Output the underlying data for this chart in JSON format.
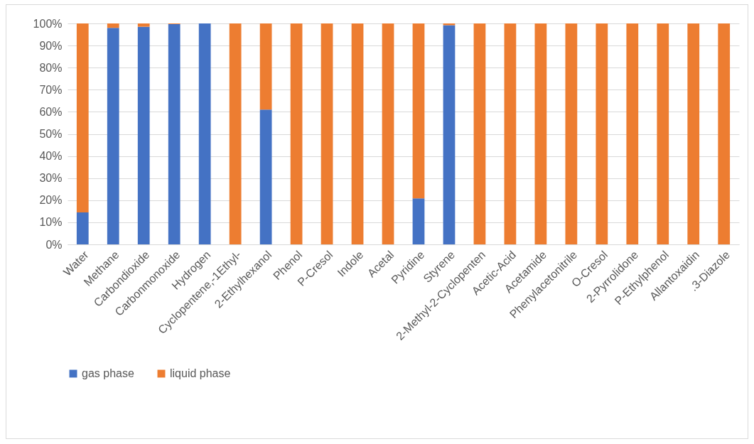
{
  "chart_data": {
    "type": "bar",
    "stacked": true,
    "categories": [
      "Water",
      "Methane",
      "Carbondioxide",
      "Carbonmonoxide",
      "Hydrogen",
      "Cyclopentene,-1Ethyl-",
      "2-Ethylhexanol",
      "Phenol",
      "P-Cresol",
      "Indole",
      "Acetal",
      "Pyridine",
      "Styrene",
      "2-Methyl-2-Cyclopenten",
      "Acetic-Acid",
      "Acetamide",
      "Phenylacetonitrile",
      "O-Cresol",
      "2-Pyrrolidone",
      "P-Ethylphenol",
      "Allantoxaidin",
      ".3-Diazole"
    ],
    "series": [
      {
        "name": "gas phase",
        "color": "#4472c4",
        "values": [
          14.5,
          98,
          98.5,
          99.7,
          100,
          0,
          61,
          0,
          0,
          0,
          0,
          20.8,
          99.2,
          0,
          0,
          0,
          0,
          0,
          0,
          0,
          0,
          0
        ]
      },
      {
        "name": "liquid phase",
        "color": "#ed7d31",
        "values": [
          85.5,
          2,
          1.5,
          0.3,
          0,
          100,
          39,
          100,
          100,
          100,
          100,
          79.2,
          0.8,
          100,
          100,
          100,
          100,
          100,
          100,
          100,
          100,
          100
        ]
      }
    ],
    "ylim": [
      0,
      100
    ],
    "yticks": [
      {
        "value": 0,
        "label": "0%"
      },
      {
        "value": 10,
        "label": "10%"
      },
      {
        "value": 20,
        "label": "20%"
      },
      {
        "value": 30,
        "label": "30%"
      },
      {
        "value": 40,
        "label": "40%"
      },
      {
        "value": 50,
        "label": "50%"
      },
      {
        "value": 60,
        "label": "60%"
      },
      {
        "value": 70,
        "label": "70%"
      },
      {
        "value": 80,
        "label": "80%"
      },
      {
        "value": 90,
        "label": "90%"
      },
      {
        "value": 100,
        "label": "100%"
      }
    ],
    "grid": "y",
    "legend": "bottom"
  }
}
